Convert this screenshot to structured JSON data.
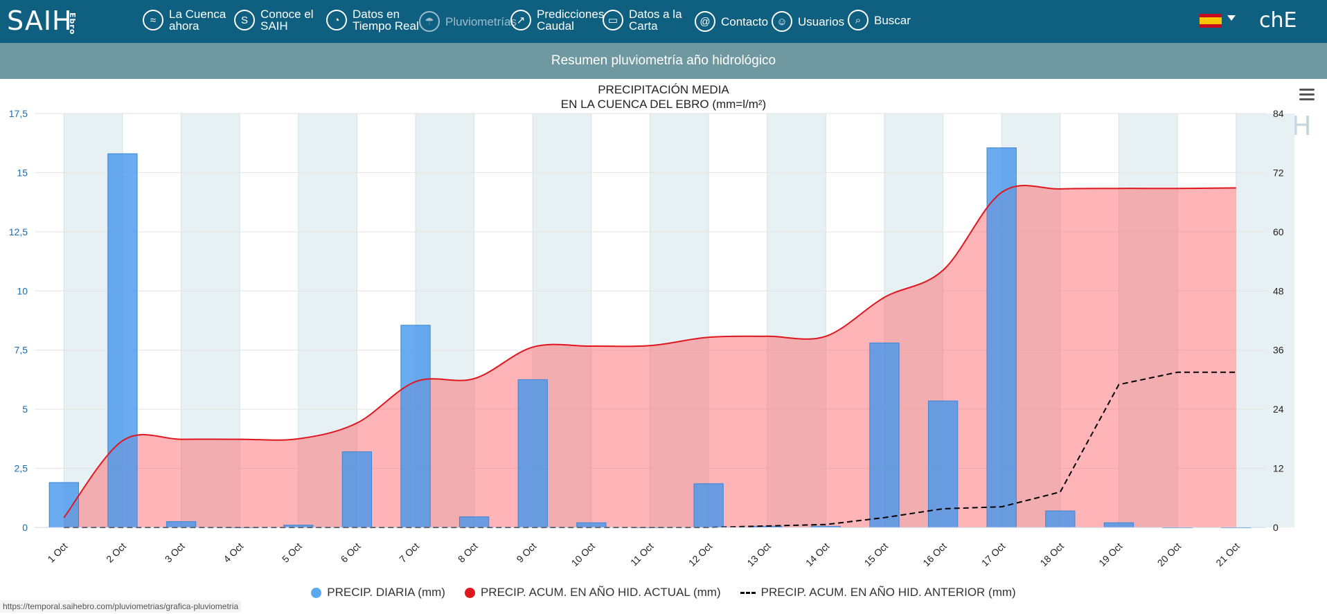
{
  "header": {
    "logo_text": "SAIH",
    "logo_sub": "Ebro",
    "nav": [
      {
        "label": "La Cuenca\nahora",
        "icon": "waves-icon",
        "glyph": "≈"
      },
      {
        "label": "Conoce el\nSAIH",
        "icon": "info-s-icon",
        "glyph": "S"
      },
      {
        "label": "Datos en\nTiempo Real",
        "icon": "clock-icon",
        "glyph": "◔"
      },
      {
        "label": "Pluviometrías",
        "icon": "umbrella-icon",
        "glyph": "☂"
      },
      {
        "label": "Predicciones\nCaudal",
        "icon": "trend-chart-icon",
        "glyph": "↗"
      },
      {
        "label": "Datos a la\nCarta",
        "icon": "folder-icon",
        "glyph": "▭"
      },
      {
        "label": "Contacto",
        "icon": "at-icon",
        "glyph": "@"
      },
      {
        "label": "Usuarios",
        "icon": "user-icon",
        "glyph": "☺"
      },
      {
        "label": "Buscar",
        "icon": "search-icon",
        "glyph": "⌕"
      }
    ],
    "language_flag": "es-flag-icon",
    "brand_right": "chE"
  },
  "subheader": {
    "title": "Resumen pluviometría año hidrológico"
  },
  "chart_data": {
    "type": "bar",
    "title": "PRECIPITACIÓN MEDIA",
    "subtitle": "EN LA CUENCA DEL EBRO (mm=l/m²)",
    "categories": [
      "1 Oct",
      "2 Oct",
      "3 Oct",
      "4 Oct",
      "5 Oct",
      "6 Oct",
      "7 Oct",
      "8 Oct",
      "9 Oct",
      "10 Oct",
      "11 Oct",
      "12 Oct",
      "13 Oct",
      "14 Oct",
      "15 Oct",
      "16 Oct",
      "17 Oct",
      "18 Oct",
      "19 Oct",
      "20 Oct",
      "21 Oct"
    ],
    "y_left": {
      "min": 0,
      "max": 17.5,
      "ticks": [
        "0",
        "2,5",
        "5",
        "7,5",
        "10",
        "12,5",
        "15",
        "17,5"
      ]
    },
    "y_right": {
      "min": 0,
      "max": 84,
      "ticks": [
        "0",
        "12",
        "24",
        "36",
        "48",
        "60",
        "72",
        "84"
      ]
    },
    "series": [
      {
        "name": "PRECIP. DIARIA (mm)",
        "type": "bar",
        "axis": "left",
        "color": "#5aa9f0",
        "values": [
          1.9,
          15.8,
          0.25,
          0,
          0.1,
          3.2,
          8.55,
          0.45,
          6.25,
          0.2,
          0,
          1.85,
          0.05,
          0.05,
          7.8,
          5.35,
          16.05,
          0.7,
          0.2,
          0,
          0
        ]
      },
      {
        "name": "PRECIP. ACUM. EN AÑO HID. ACTUAL (mm)",
        "type": "area",
        "axis": "right",
        "color": "#e0161e",
        "values": [
          2.0,
          17.6,
          17.9,
          17.9,
          18.0,
          21.2,
          29.6,
          30.2,
          36.6,
          36.8,
          36.9,
          38.6,
          38.8,
          38.8,
          46.7,
          52.2,
          68.0,
          68.7,
          68.8,
          68.8,
          68.9
        ]
      },
      {
        "name": "PRECIP. ACUM. EN AÑO HID. ANTERIOR (mm)",
        "type": "dashed-line",
        "axis": "right",
        "color": "#000000",
        "values": [
          0,
          0,
          0,
          0,
          0,
          0,
          0,
          0,
          0,
          0,
          0,
          0,
          0.3,
          0.6,
          2.0,
          3.8,
          4.2,
          7.2,
          29.0,
          31.5,
          31.5
        ]
      }
    ],
    "grid": true,
    "legend": "bottom-center"
  },
  "watermark": "SAIH",
  "status_url": "https://temporal.saihebro.com/pluviometrias/grafica-pluviometria"
}
